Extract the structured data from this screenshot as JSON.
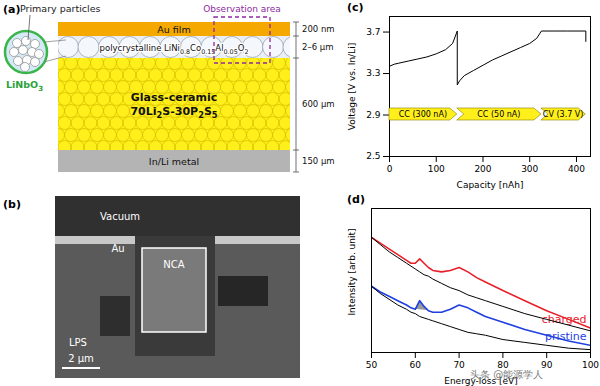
{
  "panel_a": {
    "label": "(a)",
    "inset": {
      "title": "Primary particles",
      "coating": [
        {
          "text": "LiNbO"
        },
        {
          "text": "3",
          "sub": true
        }
      ]
    },
    "observation_area": "Observation area",
    "layers": [
      {
        "name_lines": [
          [
            {
              "text": "Au film"
            }
          ]
        ],
        "thickness": "200 nm",
        "color": "#f5a800"
      },
      {
        "name_lines": [
          [
            {
              "text": "polycrystalline LiNi"
            },
            {
              "text": "0.8",
              "sub": true
            },
            {
              "text": "Co"
            },
            {
              "text": "0.15",
              "sub": true
            },
            {
              "text": "Al"
            },
            {
              "text": "0.05",
              "sub": true
            },
            {
              "text": "O"
            },
            {
              "text": "2",
              "sub": true
            }
          ]
        ],
        "thickness": "2–6 μm",
        "color": "#e9eef5"
      },
      {
        "name_lines": [
          [
            {
              "text": "Glass-ceramic"
            }
          ],
          [
            {
              "text": "70Li"
            },
            {
              "text": "2",
              "sub": true
            },
            {
              "text": "S-30P"
            },
            {
              "text": "2",
              "sub": true
            },
            {
              "text": "S"
            },
            {
              "text": "5",
              "sub": true
            }
          ]
        ],
        "thickness": "600 μm",
        "color": "#ffef1a"
      },
      {
        "name_lines": [
          [
            {
              "text": "In/Li metal"
            }
          ]
        ],
        "thickness": "150 μm",
        "color": "#b4b4b4"
      }
    ]
  },
  "panel_b": {
    "label": "(b)",
    "regions": [
      "Vacuum",
      "Au",
      "NCA",
      "LPS"
    ],
    "scale_bar": "2 μm"
  },
  "chart_data": [
    {
      "type": "line",
      "title": "(c)",
      "x_label": "Capacity [nAh]",
      "y_label": "Voltage [V vs. In/Li]",
      "xlim": [
        0,
        430
      ],
      "ylim": [
        2.5,
        3.85
      ],
      "xticks": [
        0,
        100,
        200,
        300,
        400
      ],
      "yticks": [
        2.5,
        2.9,
        3.3,
        3.7
      ],
      "x": [
        0,
        10,
        20,
        40,
        60,
        80,
        100,
        120,
        135,
        145,
        145,
        150,
        160,
        180,
        200,
        220,
        240,
        260,
        280,
        300,
        315,
        325,
        350,
        380,
        420,
        420
      ],
      "series": [
        {
          "color": "#000000",
          "values": [
            3.37,
            3.39,
            3.4,
            3.42,
            3.44,
            3.46,
            3.49,
            3.53,
            3.59,
            3.71,
            3.19,
            3.23,
            3.28,
            3.33,
            3.38,
            3.43,
            3.47,
            3.51,
            3.55,
            3.59,
            3.64,
            3.71,
            3.71,
            3.71,
            3.71,
            3.61
          ]
        }
      ],
      "annotations": [
        {
          "text": "CC (300 nA)",
          "start": 0,
          "end": 145,
          "color": "#ffef1a"
        },
        {
          "text": "CC (50 nA)",
          "start": 145,
          "end": 325,
          "color": "#ffef1a"
        },
        {
          "text": "CV (3.7 V)",
          "start": 325,
          "end": 420,
          "color": "#ffef1a"
        }
      ]
    },
    {
      "type": "line",
      "title": "(d)",
      "x_label": "Energy-loss [eV]",
      "y_label": "Intensity [arb. unit]",
      "xlim": [
        50,
        100
      ],
      "ylim": [
        0,
        1
      ],
      "xticks": [
        50,
        60,
        70,
        80,
        90,
        100
      ],
      "tick_labels": "x",
      "x": [
        50,
        52,
        54,
        56,
        58,
        59,
        60,
        61,
        62,
        63,
        64,
        66,
        68,
        70,
        72,
        74,
        76,
        80,
        85,
        90,
        95,
        100
      ],
      "series": [
        {
          "name": "charged",
          "color": "#e8202a",
          "values": [
            0.8,
            0.76,
            0.72,
            0.68,
            0.64,
            0.62,
            0.62,
            0.65,
            0.62,
            0.59,
            0.57,
            0.56,
            0.57,
            0.59,
            0.56,
            0.52,
            0.49,
            0.43,
            0.36,
            0.29,
            0.23,
            0.17
          ]
        },
        {
          "color": "#000000",
          "values": [
            0.8,
            0.75,
            0.7,
            0.66,
            0.62,
            0.6,
            0.58,
            0.56,
            0.54,
            0.53,
            0.51,
            0.48,
            0.45,
            0.43,
            0.4,
            0.38,
            0.36,
            0.32,
            0.27,
            0.23,
            0.19,
            0.15
          ]
        },
        {
          "name": "pristine",
          "color": "#1f3fe0",
          "values": [
            0.46,
            0.42,
            0.39,
            0.36,
            0.33,
            0.31,
            0.3,
            0.36,
            0.32,
            0.29,
            0.28,
            0.28,
            0.3,
            0.33,
            0.31,
            0.28,
            0.25,
            0.21,
            0.16,
            0.12,
            0.08,
            0.05
          ]
        },
        {
          "color": "#000000",
          "values": [
            0.46,
            0.41,
            0.37,
            0.33,
            0.3,
            0.28,
            0.27,
            0.25,
            0.24,
            0.23,
            0.22,
            0.2,
            0.18,
            0.16,
            0.14,
            0.13,
            0.12,
            0.09,
            0.07,
            0.05,
            0.03,
            0.02
          ]
        }
      ],
      "shaded": {
        "color": "#999999",
        "x": [
          60,
          61,
          62,
          63
        ],
        "upper": [
          0.3,
          0.36,
          0.32,
          0.29
        ],
        "lower": [
          0.3,
          0.297,
          0.293,
          0.29
        ]
      }
    }
  ],
  "watermark": "头条 @能源学人"
}
